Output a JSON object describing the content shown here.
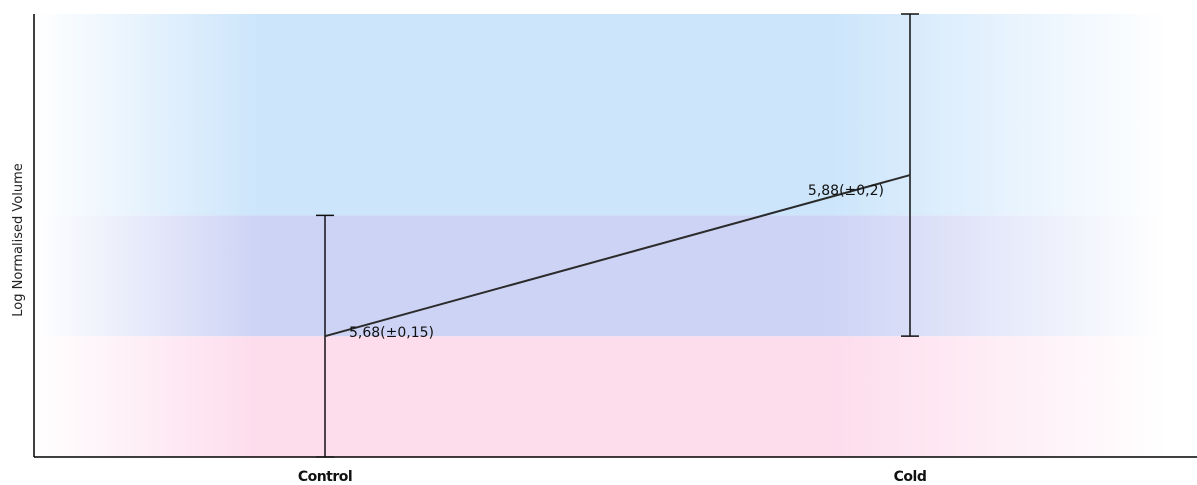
{
  "chart_data": {
    "type": "line",
    "ylabel": "Log Normalised Volume",
    "xlabel": "",
    "categories": [
      "Control",
      "Cold"
    ],
    "series": [
      {
        "values": [
          5.68,
          5.88
        ],
        "errors": [
          0.15,
          0.2
        ],
        "data_labels": [
          "5,68(±0,15)",
          "5,88(±0,2)"
        ]
      }
    ],
    "ylim": [
      5.53,
      6.08
    ],
    "background_bands": [
      {
        "from": 5.53,
        "to": 5.68,
        "color": "#fddcec"
      },
      {
        "from": 5.68,
        "to": 5.83,
        "color": "#cdd3f5"
      },
      {
        "from": 5.83,
        "to": 6.08,
        "color": "#cce5fb"
      }
    ],
    "grid": false,
    "line_color": "#2b2b2b"
  }
}
